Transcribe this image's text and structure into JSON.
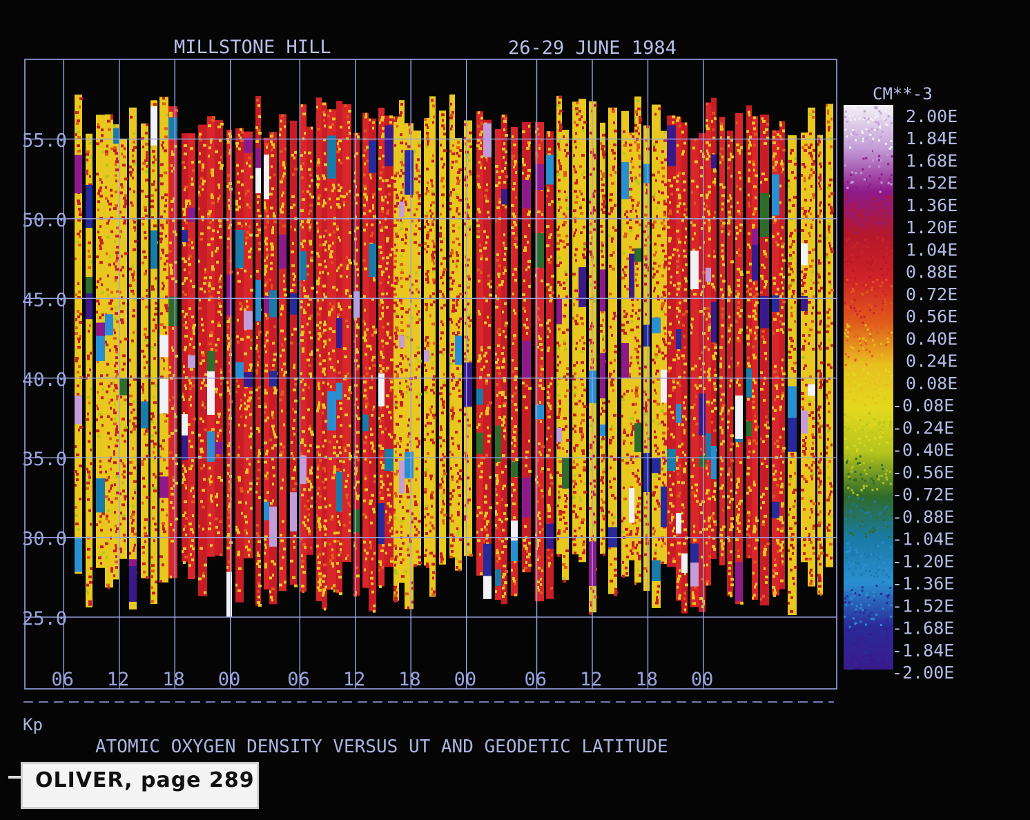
{
  "header": {
    "station": "MILLSTONE HILL",
    "dates": "26-29 JUNE 1984"
  },
  "footer": {
    "kp_label": "Kp",
    "caption": "ATOMIC OXYGEN DENSITY VERSUS UT AND GEODETIC LATITUDE",
    "card_label": "OLIVER, page 289"
  },
  "colorbar": {
    "unit": "CM**-3",
    "tick_labels": [
      "2.00E",
      "1.84E",
      "1.68E",
      "1.52E",
      "1.36E",
      "1.20E",
      "1.04E",
      "0.88E",
      "0.72E",
      "0.56E",
      "0.40E",
      "0.24E",
      "0.08E",
      "-0.08E",
      "-0.24E",
      "-0.40E",
      "-0.56E",
      "-0.72E",
      "-0.88E",
      "-1.04E",
      "-1.20E",
      "-1.36E",
      "-1.52E",
      "-1.68E",
      "-1.84E",
      "-2.00E"
    ],
    "colors": [
      "#f2f2f6",
      "#c39cd8",
      "#8e1a8a",
      "#b5182a",
      "#cf2228",
      "#e05a1c",
      "#e8c020",
      "#e2d81e",
      "#b5c41e",
      "#2f6b2a",
      "#1a7ba8",
      "#2a8fd0",
      "#2a2a9a",
      "#3a1a8a"
    ]
  },
  "chart_data": {
    "type": "heatmap",
    "title": "MILLSTONE HILL 26-29 JUNE 1984",
    "xlabel": "",
    "ylabel": "",
    "x_tick_labels": [
      "06",
      "12",
      "18",
      "00",
      "06",
      "12",
      "18",
      "00",
      "06",
      "12",
      "18",
      "00"
    ],
    "y_tick_labels": [
      "55.0",
      "50.0",
      "45.0",
      "40.0",
      "35.0",
      "30.0",
      "25.0"
    ],
    "y_ticks": [
      55.0,
      50.0,
      45.0,
      40.0,
      35.0,
      30.0,
      25.0
    ],
    "ylim": [
      20.5,
      60.0
    ],
    "xlim_hours": [
      1.8,
      89.5
    ],
    "grid": true,
    "colorbar_range": [
      -2.0,
      2.0
    ]
  }
}
